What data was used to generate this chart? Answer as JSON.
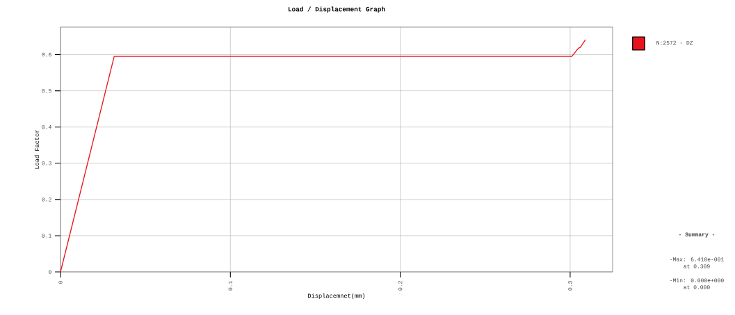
{
  "chart_data": {
    "type": "line",
    "title": "Load / Displacement Graph",
    "xlabel": "Displacemnet(mm)",
    "ylabel": "Load Factor",
    "x": [
      0,
      0.0316,
      0.301,
      0.304,
      0.305,
      0.306,
      0.309
    ],
    "series": [
      {
        "name": "N:2572 - DZ",
        "color": "#e8141c",
        "values": [
          0,
          0.595,
          0.595,
          0.613,
          0.618,
          0.62,
          0.641
        ]
      }
    ],
    "xlim": [
      0,
      0.325
    ],
    "ylim": [
      0,
      0.676
    ],
    "xticks": [
      0,
      0.1,
      0.2,
      0.3
    ],
    "yticks": [
      0,
      0.1,
      0.2,
      0.3,
      0.4,
      0.5,
      0.6
    ],
    "grid": true,
    "legend": "right",
    "marker": "none",
    "line_style": "solid",
    "annotations": [
      "- Summary -",
      "-Max: 6.410e-001",
      "at  0.309",
      "-Min: 0.000e+000",
      "at  0.000"
    ]
  }
}
